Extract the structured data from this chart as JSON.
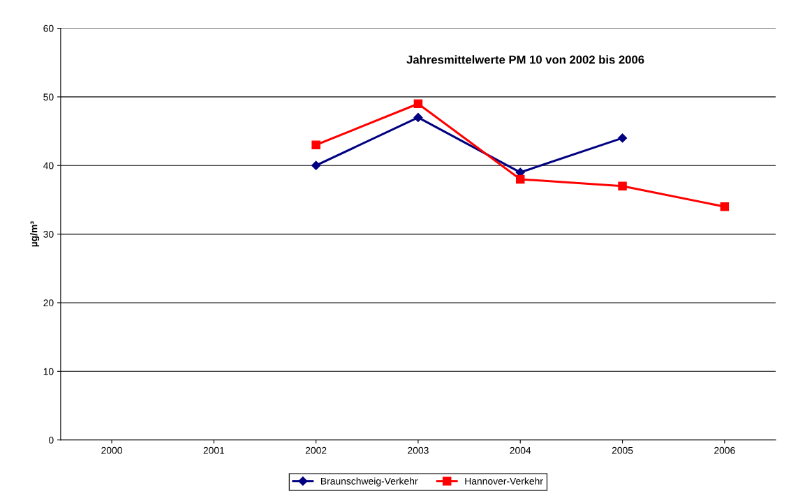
{
  "chart_data": {
    "type": "line",
    "title": "Jahresmittelwerte PM 10 von 2002 bis 2006",
    "ylabel": "µg/m³",
    "categories": [
      "2000",
      "2001",
      "2002",
      "2003",
      "2004",
      "2005",
      "2006"
    ],
    "series": [
      {
        "name": "Braunschweig-Verkehr",
        "color": "#000080",
        "marker": "diamond",
        "values": [
          null,
          null,
          40,
          47,
          39,
          44,
          null
        ]
      },
      {
        "name": "Hannover-Verkehr",
        "color": "#ff0000",
        "marker": "square",
        "values": [
          null,
          null,
          43,
          49,
          38,
          37,
          34
        ]
      }
    ],
    "ylim": [
      0,
      60
    ],
    "yticks": [
      0,
      10,
      20,
      30,
      40,
      50,
      60
    ],
    "grid": "y",
    "legend": "bottom",
    "line_style": "solid"
  }
}
